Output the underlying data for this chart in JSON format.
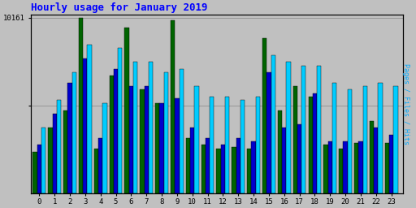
{
  "title": "Hourly usage for January 2019",
  "ylabel_right": "Pages / Files / Hits",
  "ytick_label": "10161",
  "hours": [
    0,
    1,
    2,
    3,
    4,
    5,
    6,
    7,
    8,
    9,
    10,
    11,
    12,
    13,
    14,
    15,
    16,
    17,
    18,
    19,
    20,
    21,
    22,
    23
  ],
  "pages": [
    2400,
    3800,
    4800,
    10161,
    2600,
    6800,
    9600,
    6000,
    5200,
    10000,
    3200,
    2800,
    2600,
    2700,
    2600,
    9000,
    4800,
    6200,
    5600,
    2800,
    2600,
    2900,
    4200,
    2900
  ],
  "files": [
    2800,
    4600,
    6400,
    7800,
    3200,
    7200,
    6200,
    6200,
    5200,
    5500,
    3800,
    3200,
    2800,
    3200,
    3000,
    7000,
    3800,
    4000,
    5800,
    3000,
    3000,
    3000,
    3800,
    3400
  ],
  "hits": [
    3800,
    5400,
    7000,
    8600,
    5200,
    8400,
    7600,
    7600,
    7000,
    7200,
    6200,
    5600,
    5600,
    5400,
    5600,
    8000,
    7600,
    7400,
    7400,
    6400,
    6000,
    6200,
    6400,
    6200
  ],
  "pages_color": "#006400",
  "files_color": "#0000cc",
  "hits_color": "#00ccff",
  "bg_color": "#c0c0c0",
  "plot_bg_color": "#c0c0c0",
  "title_color": "#0000ff",
  "ylabel_right_color": "#00aaff",
  "border_color": "#000000",
  "ymax": 10161,
  "bar_width": 0.28
}
